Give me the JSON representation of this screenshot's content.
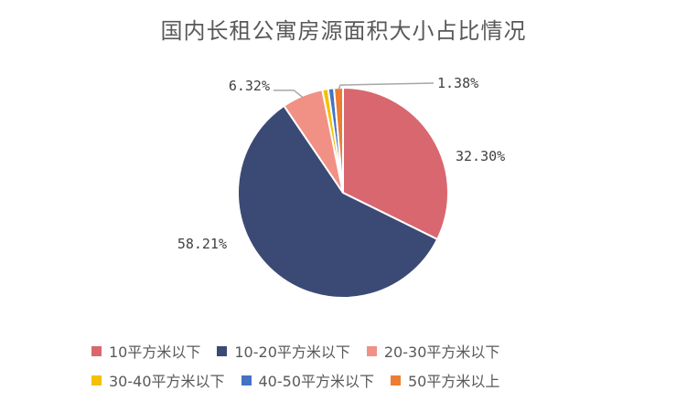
{
  "chart_data": {
    "type": "pie",
    "title": "国内长租公寓房源面积大小占比情况",
    "categories": [
      "10平方米以下",
      "10-20平方米以下",
      "20-30平方米以下",
      "30-40平方米以下",
      "40-50平方米以下",
      "50平方米以上"
    ],
    "values": [
      32.3,
      58.21,
      6.32,
      0.9,
      0.89,
      1.38
    ],
    "labels": [
      "32.30%",
      "58.21%",
      "6.32%",
      "",
      "",
      "1.38%"
    ],
    "colors": [
      "#d9676f",
      "#3b4a75",
      "#f19185",
      "#f5c000",
      "#4472c4",
      "#ed7d31"
    ],
    "legend_position": "bottom"
  }
}
